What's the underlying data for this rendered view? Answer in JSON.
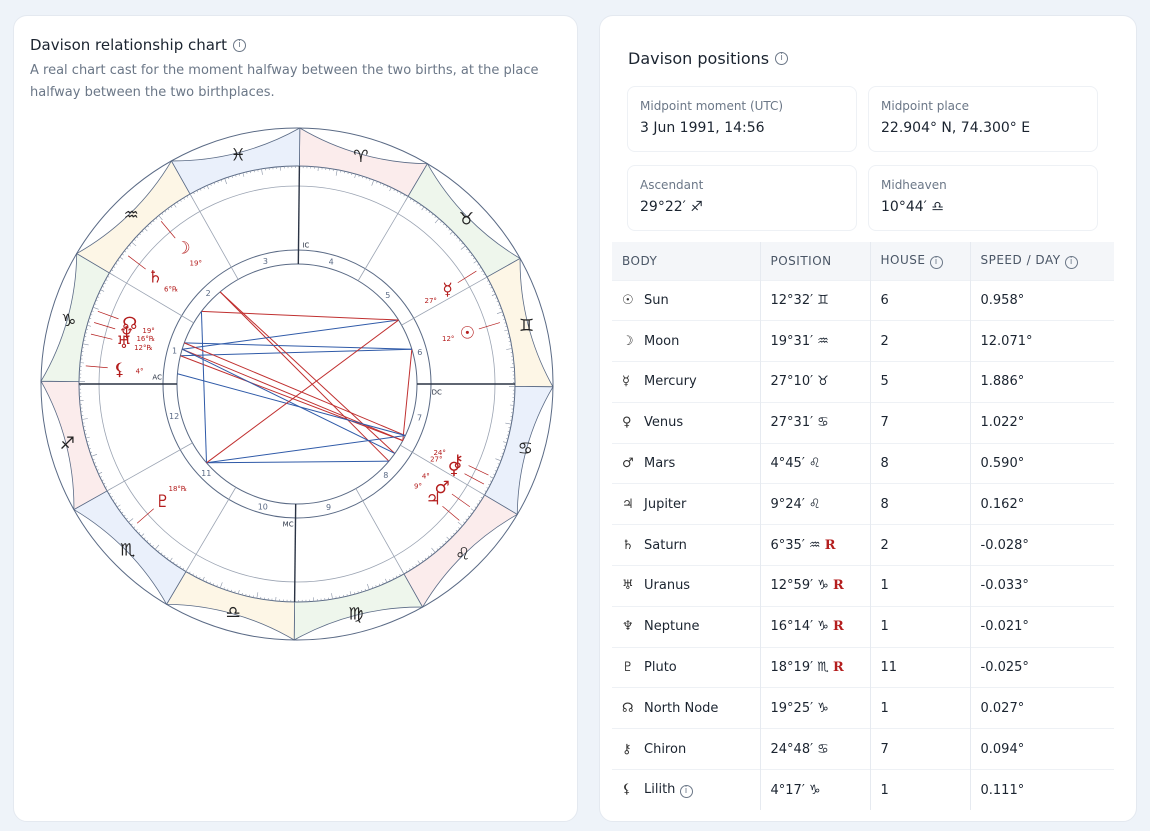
{
  "left": {
    "title": "Davison relationship chart",
    "subtitle": "A real chart cast for the moment halfway between the two births, at the place halfway between the two birthplaces."
  },
  "right": {
    "title": "Davison positions",
    "midpoint_moment_label": "Midpoint moment (UTC)",
    "midpoint_moment_value": "3 Jun 1991, 14:56",
    "midpoint_place_label": "Midpoint place",
    "midpoint_place_value": "22.904° N, 74.300° E",
    "ascendant_label": "Ascendant",
    "ascendant_value": "29°22′ ♐",
    "midheaven_label": "Midheaven",
    "midheaven_value": "10°44′ ♎"
  },
  "table": {
    "headers": {
      "body": "BODY",
      "position": "POSITION",
      "house": "HOUSE",
      "speed": "SPEED / DAY"
    },
    "rows": [
      {
        "glyph": "☉",
        "body": "Sun",
        "pos": "12°32′ ♊",
        "retro": "",
        "house": "6",
        "speed": "0.958°"
      },
      {
        "glyph": "☽",
        "body": "Moon",
        "pos": "19°31′ ♒",
        "retro": "",
        "house": "2",
        "speed": "12.071°"
      },
      {
        "glyph": "☿",
        "body": "Mercury",
        "pos": "27°10′ ♉",
        "retro": "",
        "house": "5",
        "speed": "1.886°"
      },
      {
        "glyph": "♀",
        "body": "Venus",
        "pos": "27°31′ ♋",
        "retro": "",
        "house": "7",
        "speed": "1.022°"
      },
      {
        "glyph": "♂",
        "body": "Mars",
        "pos": "4°45′ ♌",
        "retro": "",
        "house": "8",
        "speed": "0.590°"
      },
      {
        "glyph": "♃",
        "body": "Jupiter",
        "pos": "9°24′ ♌",
        "retro": "",
        "house": "8",
        "speed": "0.162°"
      },
      {
        "glyph": "♄",
        "body": "Saturn",
        "pos": "6°35′ ♒",
        "retro": "R",
        "house": "2",
        "speed": "-0.028°"
      },
      {
        "glyph": "♅",
        "body": "Uranus",
        "pos": "12°59′ ♑",
        "retro": "R",
        "house": "1",
        "speed": "-0.033°"
      },
      {
        "glyph": "♆",
        "body": "Neptune",
        "pos": "16°14′ ♑",
        "retro": "R",
        "house": "1",
        "speed": "-0.021°"
      },
      {
        "glyph": "♇",
        "body": "Pluto",
        "pos": "18°19′ ♏",
        "retro": "R",
        "house": "11",
        "speed": "-0.025°"
      },
      {
        "glyph": "☊",
        "body": "North Node",
        "pos": "19°25′ ♑",
        "retro": "",
        "house": "1",
        "speed": "0.027°"
      },
      {
        "glyph": "⚷",
        "body": "Chiron",
        "pos": "24°48′ ♋",
        "retro": "",
        "house": "7",
        "speed": "0.094°"
      },
      {
        "glyph": "⚸",
        "body": "Lilith",
        "pos": "4°17′ ♑",
        "retro": "",
        "house": "1",
        "speed": "0.111°",
        "info": true
      }
    ]
  },
  "wheel": {
    "ascendant_deg": 269.37,
    "signs": [
      {
        "glyph": "♈",
        "color": "#fbecec"
      },
      {
        "glyph": "♉",
        "color": "#eef6ec"
      },
      {
        "glyph": "♊",
        "color": "#fdf6e6"
      },
      {
        "glyph": "♋",
        "color": "#eaf0fb"
      },
      {
        "glyph": "♌",
        "color": "#fbecec"
      },
      {
        "glyph": "♍",
        "color": "#eef6ec"
      },
      {
        "glyph": "♎",
        "color": "#fdf6e6"
      },
      {
        "glyph": "♏",
        "color": "#eaf0fb"
      },
      {
        "glyph": "♐",
        "color": "#fbecec"
      },
      {
        "glyph": "♑",
        "color": "#eef6ec"
      },
      {
        "glyph": "♒",
        "color": "#fdf6e6"
      },
      {
        "glyph": "♓",
        "color": "#eaf0fb"
      }
    ],
    "house_cusps": [
      269.37,
      300,
      330,
      0,
      30,
      60,
      89.37,
      120,
      150,
      180,
      210,
      240
    ],
    "angle_labels": {
      "asc": "AC",
      "dsc": "DC",
      "mc": "MC",
      "ic": "IC"
    },
    "planets": [
      {
        "glyph": "☉",
        "lon": 72.53,
        "deg": "12°",
        "r": false
      },
      {
        "glyph": "☽",
        "lon": 319.52,
        "deg": "19°",
        "r": false
      },
      {
        "glyph": "☿",
        "lon": 57.17,
        "deg": "27°",
        "r": false
      },
      {
        "glyph": "♀",
        "lon": 117.52,
        "deg": "27°",
        "r": false
      },
      {
        "glyph": "♂",
        "lon": 124.75,
        "deg": "4°",
        "r": false
      },
      {
        "glyph": "♃",
        "lon": 129.4,
        "deg": "9°",
        "r": false
      },
      {
        "glyph": "♄",
        "lon": 306.58,
        "deg": "6°",
        "r": true
      },
      {
        "glyph": "♅",
        "lon": 282.98,
        "deg": "12°",
        "r": true
      },
      {
        "glyph": "♆",
        "lon": 286.23,
        "deg": "16°",
        "r": true
      },
      {
        "glyph": "♇",
        "lon": 228.32,
        "deg": "18°",
        "r": true
      },
      {
        "glyph": "☊",
        "lon": 289.42,
        "deg": "19°",
        "r": false
      },
      {
        "glyph": "⚷",
        "lon": 114.8,
        "deg": "24°",
        "r": false
      },
      {
        "glyph": "⚸",
        "lon": 274.28,
        "deg": "4°",
        "r": false
      }
    ],
    "aspects": [
      {
        "a": 0,
        "b": 3,
        "color": "#c03030"
      },
      {
        "a": 0,
        "b": 7,
        "color": "#2f5aa8"
      },
      {
        "a": 1,
        "b": 4,
        "color": "#c03030"
      },
      {
        "a": 1,
        "b": 5,
        "color": "#c03030"
      },
      {
        "a": 2,
        "b": 8,
        "color": "#2f5aa8"
      },
      {
        "a": 2,
        "b": 6,
        "color": "#c03030"
      },
      {
        "a": 3,
        "b": 7,
        "color": "#c03030"
      },
      {
        "a": 3,
        "b": 8,
        "color": "#c03030"
      },
      {
        "a": 4,
        "b": 8,
        "color": "#2f5aa8"
      },
      {
        "a": 5,
        "b": 9,
        "color": "#2f5aa8"
      },
      {
        "a": 6,
        "b": 9,
        "color": "#2f5aa8"
      },
      {
        "a": 0,
        "b": 10,
        "color": "#2f5aa8"
      },
      {
        "a": 11,
        "b": 10,
        "color": "#c03030"
      },
      {
        "a": 11,
        "b": 12,
        "color": "#2f5aa8"
      },
      {
        "a": 9,
        "b": 11,
        "color": "#2f5aa8"
      },
      {
        "a": 2,
        "b": 9,
        "color": "#c03030"
      }
    ]
  }
}
